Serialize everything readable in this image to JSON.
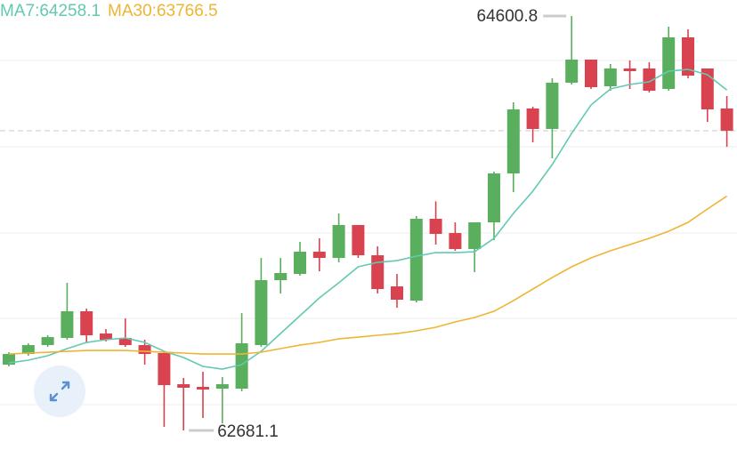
{
  "chart_data": {
    "type": "candlestick",
    "ylim": [
      62590.4,
      64675.0
    ],
    "candle_colors": {
      "up": "#5aaf5e",
      "down": "#d8434f"
    },
    "candles": {
      "open": [
        62985.8,
        63035.2,
        63076.4,
        63109.4,
        63233.0,
        63130.0,
        63109.4,
        63076.4,
        63039.4,
        62895.2,
        62882.8,
        62874.6,
        62874.6,
        63076.4,
        63377.2,
        63406.0,
        63509.0,
        63480.2,
        63632.6,
        63492.6,
        63348.4,
        63282.4,
        63661.5,
        63595.6,
        63521.4,
        63645.0,
        63871.6,
        64172.4,
        64077.6,
        64291.8,
        64398.9,
        64275.4,
        64357.8,
        64357.8,
        64263.0,
        64502.0,
        64357.8,
        64172.4
      ],
      "high": [
        63043.5,
        63084.7,
        63121.8,
        63364.8,
        63245.4,
        63150.6,
        63200.0,
        63101.2,
        63047.6,
        62924.0,
        62952.8,
        62928.1,
        63224.8,
        63480.2,
        63480.2,
        63554.4,
        63570.8,
        63686.2,
        63632.6,
        63533.8,
        63406.0,
        63673.8,
        63742.1,
        63645.0,
        63645.0,
        63879.8,
        64201.2,
        64180.6,
        64312.4,
        64600.8,
        64398.9,
        64378.4,
        64394.8,
        64386.6,
        64551.4,
        64539.0,
        64357.8,
        64230.0
      ],
      "low": [
        62977.6,
        63027.0,
        63068.2,
        63101.2,
        63084.7,
        63092.9,
        63068.2,
        62985.8,
        62697.4,
        62681.1,
        62738.6,
        62713.9,
        62862.2,
        63068.2,
        63315.4,
        63397.8,
        63418.4,
        63459.6,
        63480.2,
        63315.4,
        63249.5,
        63274.2,
        63542.0,
        63513.2,
        63414.3,
        63562.6,
        63785.1,
        64015.8,
        63941.6,
        64283.6,
        64263.0,
        64254.8,
        64263.0,
        64246.5,
        64254.8,
        64312.4,
        64110.6,
        63995.0
      ],
      "close": [
        63035.2,
        63076.4,
        63113.5,
        63233.0,
        63121.8,
        63101.2,
        63076.4,
        63035.2,
        62891.0,
        62878.7,
        62870.4,
        62895.2,
        63084.7,
        63377.2,
        63410.2,
        63509.0,
        63480.2,
        63632.6,
        63492.6,
        63336.0,
        63286.6,
        63661.5,
        63591.4,
        63521.4,
        63645.0,
        63871.6,
        64168.2,
        64077.6,
        64291.8,
        64398.9,
        64271.2,
        64357.8,
        64345.4,
        64254.8,
        64502.0,
        64324.8,
        64168.2,
        64069.4
      ]
    },
    "series": [
      {
        "name": "MA7:64258.1",
        "color": "#63c9b2",
        "values": [
          62994.0,
          63006.4,
          63027.0,
          63060.0,
          63088.8,
          63101.2,
          63109.4,
          63088.8,
          63047.6,
          63018.8,
          62977.6,
          62965.2,
          62985.8,
          63047.6,
          63130.0,
          63212.4,
          63294.8,
          63364.8,
          63439.0,
          63459.6,
          63467.8,
          63488.4,
          63504.9,
          63504.9,
          63509.0,
          63570.8,
          63686.2,
          63789.2,
          63912.8,
          64057.0,
          64188.8,
          64263.0,
          64283.6,
          64296.0,
          64345.4,
          64353.6,
          64328.9,
          64258.1
        ]
      },
      {
        "name": "MA30:63766.5",
        "color": "#eeb534",
        "values": [
          63035.2,
          63039.4,
          63043.5,
          63047.6,
          63051.7,
          63051.7,
          63051.7,
          63047.6,
          63043.5,
          63039.4,
          63035.2,
          63035.2,
          63035.2,
          63043.5,
          63060.0,
          63076.4,
          63088.8,
          63105.3,
          63113.5,
          63121.8,
          63130.0,
          63142.4,
          63158.8,
          63183.6,
          63204.2,
          63233.0,
          63282.4,
          63336.0,
          63389.6,
          63439.0,
          63480.2,
          63513.2,
          63542.0,
          63570.8,
          63603.8,
          63645.0,
          63706.8,
          63766.5
        ]
      }
    ],
    "max_label": 64600.8,
    "min_label": 62681.1
  }
}
